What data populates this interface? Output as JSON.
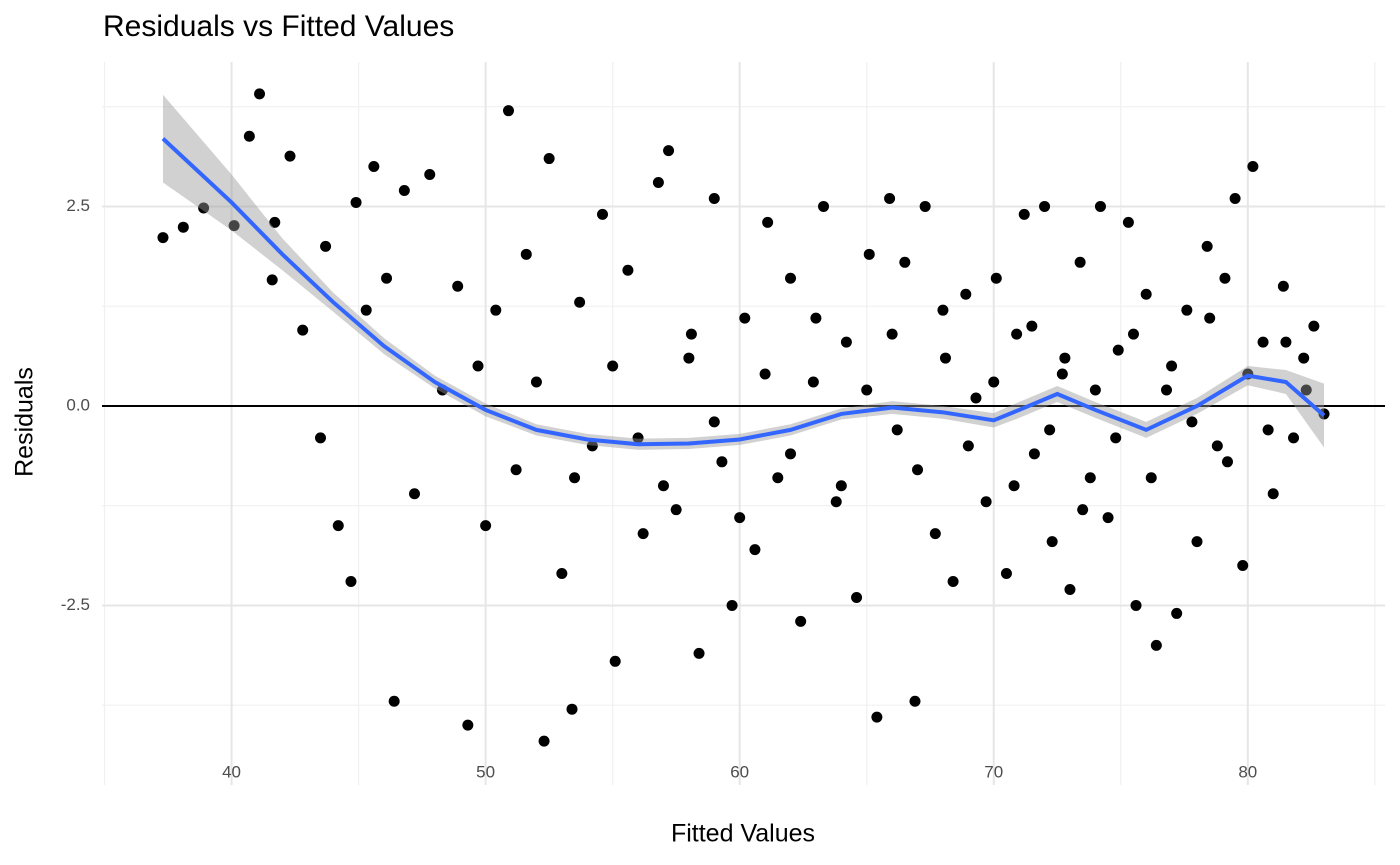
{
  "chart_data": {
    "type": "scatter",
    "title": "Residuals vs Fitted Values",
    "x_label": "Fitted Values",
    "y_label": "Residuals",
    "xlim": [
      34.9,
      85.4
    ],
    "ylim": [
      -4.75,
      4.31
    ],
    "xticks": [
      40,
      50,
      60,
      70,
      80
    ],
    "yticks": [
      -2.5,
      {
        "value": 0,
        "label": "0.0"
      },
      2.5
    ],
    "xminor": [
      35,
      45,
      55,
      65,
      75,
      85
    ],
    "yminor": [
      -3.75,
      -1.25,
      1.25,
      3.75
    ],
    "grid": true,
    "hline": 0,
    "point_color": "#000000",
    "x": [
      37.3,
      38.1,
      38.9,
      40.1,
      40.7,
      41.1,
      41.7,
      41.6,
      42.3,
      42.8,
      43.5,
      43.7,
      44.2,
      44.7,
      44.9,
      45.3,
      45.6,
      46.1,
      46.4,
      46.8,
      47.2,
      47.8,
      48.3,
      48.9,
      49.3,
      49.7,
      50.0,
      50.4,
      50.9,
      51.2,
      51.6,
      52.3,
      52.5,
      53.0,
      53.4,
      53.7,
      54.2,
      54.6,
      55.1,
      55.6,
      56.2,
      56.8,
      57.2,
      57.5,
      58.1,
      58.4,
      59.0,
      59.3,
      59.7,
      60.2,
      60.6,
      61.1,
      61.5,
      62.0,
      62.4,
      62.9,
      63.3,
      63.8,
      64.2,
      64.6,
      65.1,
      65.4,
      65.9,
      66.2,
      66.5,
      66.9,
      67.3,
      67.7,
      68.1,
      68.4,
      68.9,
      69.3,
      69.7,
      70.1,
      70.5,
      70.9,
      71.2,
      71.6,
      72.0,
      72.3,
      72.7,
      73.0,
      73.4,
      73.8,
      74.2,
      74.5,
      74.9,
      75.3,
      75.6,
      76.0,
      76.4,
      76.8,
      77.2,
      77.6,
      78.0,
      78.4,
      78.8,
      79.1,
      79.5,
      79.8,
      80.2,
      80.6,
      81.0,
      81.4,
      81.8,
      82.2,
      82.6,
      83.0,
      52.0,
      53.5,
      55.0,
      56.0,
      57.0,
      58.0,
      59.0,
      60.0,
      61.0,
      62.0,
      63.0,
      64.0,
      65.0,
      66.0,
      67.0,
      68.0,
      69.0,
      70.0,
      70.8,
      71.5,
      72.2,
      72.8,
      73.5,
      74.0,
      74.8,
      75.5,
      76.2,
      77.0,
      77.8,
      78.5,
      79.2,
      80.0,
      80.8,
      81.5,
      82.3
    ],
    "values": [
      2.11,
      2.24,
      2.48,
      2.26,
      3.38,
      3.91,
      2.3,
      1.58,
      3.13,
      0.95,
      -0.4,
      2.0,
      -1.5,
      -2.2,
      2.55,
      1.2,
      3.0,
      1.6,
      -3.7,
      2.7,
      -1.1,
      2.9,
      0.2,
      1.5,
      -4.0,
      0.5,
      -1.5,
      1.2,
      3.7,
      -0.8,
      1.9,
      -4.2,
      3.1,
      -2.1,
      -3.8,
      1.3,
      -0.5,
      2.4,
      -3.2,
      1.7,
      -1.6,
      2.8,
      3.2,
      -1.3,
      0.9,
      -3.1,
      2.6,
      -0.7,
      -2.5,
      1.1,
      -1.8,
      2.3,
      -0.9,
      1.6,
      -2.7,
      0.3,
      2.5,
      -1.2,
      0.8,
      -2.4,
      1.9,
      -3.9,
      2.6,
      -0.3,
      1.8,
      -3.7,
      2.5,
      -1.6,
      0.6,
      -2.2,
      1.4,
      0.1,
      -1.2,
      1.6,
      -2.1,
      0.9,
      2.4,
      -0.6,
      2.5,
      -1.7,
      0.4,
      -2.3,
      1.8,
      -0.9,
      2.5,
      -1.4,
      0.7,
      2.3,
      -2.5,
      1.4,
      -3.0,
      0.2,
      -2.6,
      1.2,
      -1.7,
      2.0,
      -0.5,
      1.6,
      2.6,
      -2.0,
      3.0,
      0.8,
      -1.1,
      1.5,
      -0.4,
      0.6,
      1.0,
      -0.1,
      0.3,
      -0.9,
      0.5,
      -0.4,
      -1.0,
      0.6,
      -0.2,
      -1.4,
      0.4,
      -0.6,
      1.1,
      -1.0,
      0.2,
      0.9,
      -0.8,
      1.2,
      -0.5,
      0.3,
      -1.0,
      1.0,
      -0.3,
      0.6,
      -1.3,
      0.2,
      -0.4,
      0.9,
      -0.9,
      0.5,
      -0.2,
      1.1,
      -0.7,
      0.4,
      -0.3,
      0.8,
      0.2
    ],
    "smooth": {
      "color": "#3366ff",
      "band_color": "#999999",
      "x": [
        37.3,
        40,
        42,
        44,
        46,
        48,
        50,
        52,
        54,
        56,
        58,
        60,
        62,
        64,
        66,
        68,
        70,
        71,
        72.5,
        74,
        76,
        78,
        80,
        81.5,
        83
      ],
      "values": [
        3.35,
        2.55,
        1.9,
        1.3,
        0.75,
        0.3,
        -0.05,
        -0.3,
        -0.42,
        -0.48,
        -0.47,
        -0.42,
        -0.3,
        -0.1,
        -0.02,
        -0.08,
        -0.18,
        -0.05,
        0.15,
        -0.05,
        -0.3,
        0.0,
        0.38,
        0.3,
        -0.12
      ],
      "lower": [
        2.8,
        2.2,
        1.7,
        1.18,
        0.65,
        0.22,
        -0.13,
        -0.37,
        -0.49,
        -0.55,
        -0.54,
        -0.49,
        -0.37,
        -0.17,
        -0.1,
        -0.16,
        -0.27,
        -0.15,
        0.05,
        -0.15,
        -0.4,
        -0.1,
        0.26,
        0.15,
        -0.52
      ],
      "upper": [
        3.9,
        2.9,
        2.1,
        1.42,
        0.85,
        0.38,
        0.03,
        -0.23,
        -0.35,
        -0.41,
        -0.4,
        -0.35,
        -0.23,
        -0.03,
        0.06,
        0.0,
        -0.09,
        0.05,
        0.25,
        0.05,
        -0.2,
        0.1,
        0.5,
        0.45,
        0.28
      ]
    }
  }
}
